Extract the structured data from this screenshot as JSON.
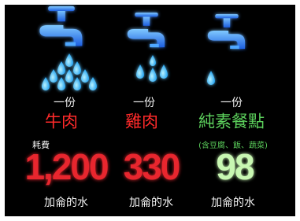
{
  "columns": [
    {
      "portion": "一份",
      "food": "牛肉",
      "amount": "1,200",
      "unit": "加侖的水"
    },
    {
      "portion": "一份",
      "food": "雞肉",
      "amount": "330",
      "unit": "加侖的水"
    },
    {
      "portion": "一份",
      "food": "純素餐點",
      "note": "(含豆腐、飯、蔬菜)",
      "amount": "98",
      "unit": "加侖的水"
    }
  ],
  "cost_label": "耗費"
}
